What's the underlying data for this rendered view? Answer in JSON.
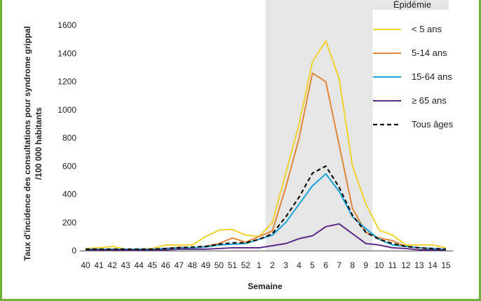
{
  "chart_data": {
    "type": "line",
    "xlabel": "Semaine",
    "ylabel_line1": "Taux d'incidence des consultations pour syndrome grippal",
    "ylabel_line2": "/100 000 habitants",
    "ylim": [
      0,
      1800
    ],
    "yticks": [
      0,
      200,
      400,
      600,
      800,
      1000,
      1200,
      1400,
      1600
    ],
    "x": [
      "40",
      "41",
      "42",
      "43",
      "44",
      "45",
      "46",
      "47",
      "48",
      "49",
      "50",
      "51",
      "52",
      "1",
      "2",
      "3",
      "4",
      "5",
      "6",
      "7",
      "8",
      "9",
      "10",
      "11",
      "12",
      "13",
      "14",
      "15"
    ],
    "epidemic": {
      "label": "Épidémie",
      "start": "2",
      "end": "9",
      "color": "#e6e6e6"
    },
    "series": [
      {
        "name": "< 5 ans",
        "color": "#f2d22e",
        "dash": false,
        "values": [
          15,
          20,
          30,
          10,
          10,
          15,
          40,
          40,
          40,
          100,
          145,
          150,
          110,
          100,
          200,
          550,
          900,
          1340,
          1490,
          1220,
          600,
          330,
          145,
          110,
          40,
          40,
          40,
          20
        ]
      },
      {
        "name": "5-14 ans",
        "color": "#e0873a",
        "dash": false,
        "values": [
          10,
          10,
          10,
          10,
          10,
          10,
          15,
          25,
          20,
          30,
          50,
          90,
          60,
          100,
          140,
          450,
          800,
          1260,
          1200,
          750,
          300,
          130,
          90,
          70,
          30,
          20,
          10,
          10
        ]
      },
      {
        "name": "15-64 ans",
        "color": "#1aa3d5",
        "dash": false,
        "values": [
          10,
          10,
          10,
          10,
          10,
          10,
          15,
          20,
          20,
          25,
          40,
          45,
          50,
          80,
          110,
          200,
          330,
          460,
          545,
          420,
          240,
          155,
          80,
          40,
          30,
          20,
          15,
          10
        ]
      },
      {
        "name": "≥ 65 ans",
        "color": "#5b2a86",
        "dash": false,
        "values": [
          5,
          5,
          5,
          5,
          5,
          5,
          5,
          10,
          10,
          10,
          15,
          20,
          20,
          20,
          35,
          50,
          85,
          105,
          170,
          190,
          120,
          50,
          40,
          20,
          15,
          5,
          5,
          5
        ]
      },
      {
        "name": "Tous âges",
        "color": "#111111",
        "dash": true,
        "values": [
          10,
          10,
          10,
          10,
          10,
          10,
          15,
          20,
          25,
          30,
          45,
          55,
          55,
          80,
          120,
          240,
          380,
          550,
          600,
          450,
          250,
          130,
          80,
          50,
          30,
          20,
          15,
          10
        ]
      }
    ],
    "legend_position": "top-right",
    "grid": false
  }
}
